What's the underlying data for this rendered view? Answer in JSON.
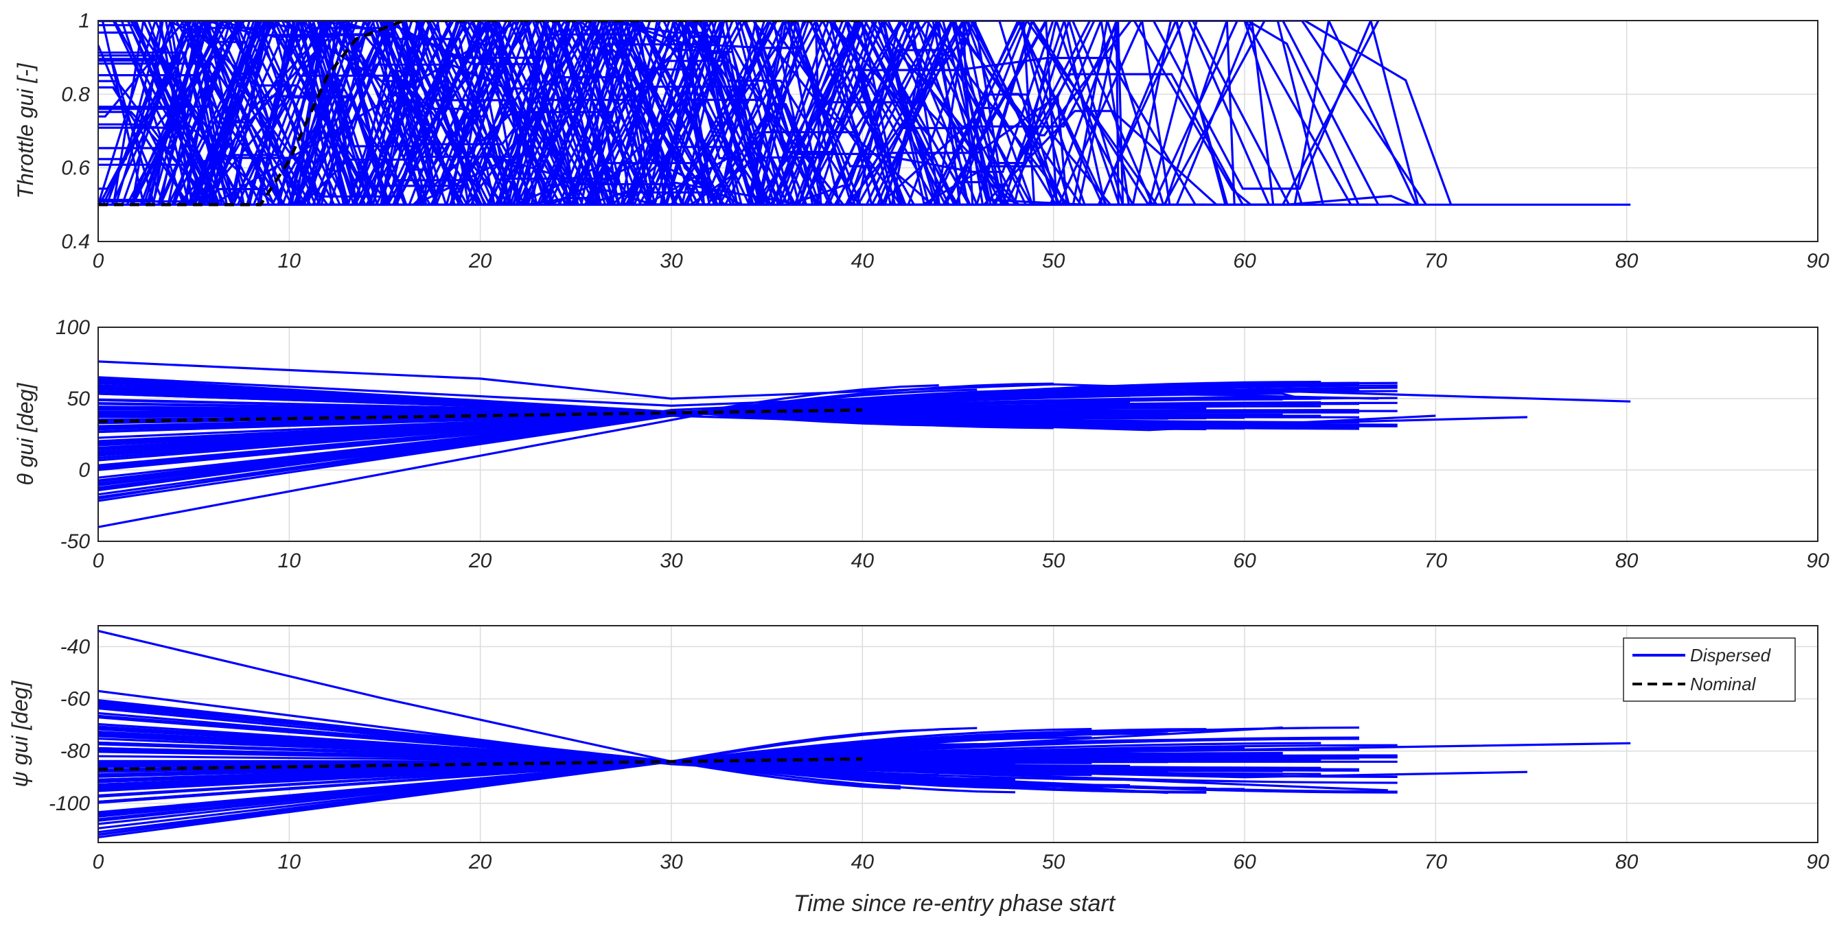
{
  "colors": {
    "dispersed": "#0000ff",
    "nominal": "#000000",
    "grid": "#dcdcdc",
    "axis": "#262626"
  },
  "chart_data": [
    {
      "type": "line",
      "ylabel": "Throttle gui [-]",
      "xlabel": "",
      "xlim": [
        0,
        90
      ],
      "ylim": [
        0.4,
        1
      ],
      "xticks": [
        0,
        10,
        20,
        30,
        40,
        50,
        60,
        70,
        80,
        90
      ],
      "yticks": [
        0.4,
        0.6,
        0.8,
        1
      ],
      "ytick_labels": [
        "0.4",
        "0.6",
        "0.8",
        "1"
      ],
      "grid": true,
      "series": [
        {
          "name": "Dispersed",
          "style": "solid",
          "note_count": 100,
          "sample_lines": [
            {
              "x": [
                0,
                3,
                7,
                80.2
              ],
              "y": [
                0.5,
                1,
                0.5,
                0.5
              ]
            },
            {
              "x": [
                0,
                5,
                12,
                58
              ],
              "y": [
                1,
                1,
                0.5,
                0.5
              ]
            },
            {
              "x": [
                0,
                6,
                22,
                62
              ],
              "y": [
                0.5,
                0.5,
                1,
                1
              ]
            },
            {
              "x": [
                23,
                27,
                63,
                69.5
              ],
              "y": [
                0.5,
                1,
                1,
                0.5
              ]
            },
            {
              "x": [
                55,
                57.5,
                62,
                67
              ],
              "y": [
                0.5,
                1,
                1,
                0.5
              ]
            },
            {
              "x": [
                60,
                63
              ],
              "y": [
                1,
                0.5
              ]
            },
            {
              "x": [
                62,
                67
              ],
              "y": [
                0.5,
                1
              ]
            }
          ]
        },
        {
          "name": "Nominal",
          "style": "dashed",
          "x": [
            0,
            8.5,
            10,
            12,
            13.5,
            16,
            20,
            30,
            40
          ],
          "y": [
            0.5,
            0.5,
            0.62,
            0.85,
            0.95,
            1,
            1,
            1,
            1
          ]
        }
      ]
    },
    {
      "type": "line",
      "ylabel": "θ gui [deg]",
      "xlabel": "",
      "xlim": [
        0,
        90
      ],
      "ylim": [
        -50,
        100
      ],
      "xticks": [
        0,
        10,
        20,
        30,
        40,
        50,
        60,
        70,
        80,
        90
      ],
      "yticks": [
        -50,
        0,
        50,
        100
      ],
      "ytick_labels": [
        "-50",
        "0",
        "50",
        "100"
      ],
      "grid": true,
      "series": [
        {
          "name": "Dispersed",
          "style": "solid",
          "sample_lines": [
            {
              "x": [
                0,
                20,
                30,
                50,
                80.2
              ],
              "y": [
                76,
                64,
                50,
                60,
                48
              ]
            },
            {
              "x": [
                0,
                32,
                55,
                74.8
              ],
              "y": [
                -40,
                40,
                30,
                37
              ]
            },
            {
              "x": [
                0,
                30,
                50,
                67
              ],
              "y": [
                65,
                45,
                55,
                50
              ]
            },
            {
              "x": [
                0,
                30,
                55,
                70
              ],
              "y": [
                0,
                38,
                28,
                38
              ]
            },
            {
              "x": [
                0,
                30,
                60,
                63
              ],
              "y": [
                -20,
                42,
                60,
                50
              ]
            }
          ]
        },
        {
          "name": "Nominal",
          "style": "dashed",
          "x": [
            0,
            10,
            20,
            30,
            40
          ],
          "y": [
            34,
            36,
            38,
            40,
            42
          ]
        }
      ]
    },
    {
      "type": "line",
      "ylabel": "ψ gui [deg]",
      "xlabel": "Time since re-entry phase start",
      "xlim": [
        0,
        90
      ],
      "ylim": [
        -115,
        -32
      ],
      "xticks": [
        0,
        10,
        20,
        30,
        40,
        50,
        60,
        70,
        80,
        90
      ],
      "yticks": [
        -100,
        -80,
        -60,
        -40
      ],
      "ytick_labels": [
        "-100",
        "-80",
        "-60",
        "-40"
      ],
      "grid": true,
      "legend": {
        "position": "top-right",
        "entries": [
          "Dispersed",
          "Nominal"
        ]
      },
      "series": [
        {
          "name": "Dispersed",
          "style": "solid",
          "sample_lines": [
            {
              "x": [
                0,
                15,
                30,
                55,
                80.2
              ],
              "y": [
                -34,
                -60,
                -84,
                -80,
                -77
              ]
            },
            {
              "x": [
                0,
                30,
                62
              ],
              "y": [
                -113,
                -84,
                -71
              ]
            },
            {
              "x": [
                0,
                30,
                60,
                74.8
              ],
              "y": [
                -57,
                -85,
                -90,
                -88
              ]
            },
            {
              "x": [
                0,
                30,
                56
              ],
              "y": [
                -63,
                -85,
                -96
              ]
            },
            {
              "x": [
                0,
                30,
                67.5
              ],
              "y": [
                -111,
                -84,
                -95
              ]
            }
          ]
        },
        {
          "name": "Nominal",
          "style": "dashed",
          "x": [
            0,
            10,
            20,
            30,
            40
          ],
          "y": [
            -87,
            -86,
            -85,
            -84,
            -83
          ]
        }
      ]
    }
  ]
}
